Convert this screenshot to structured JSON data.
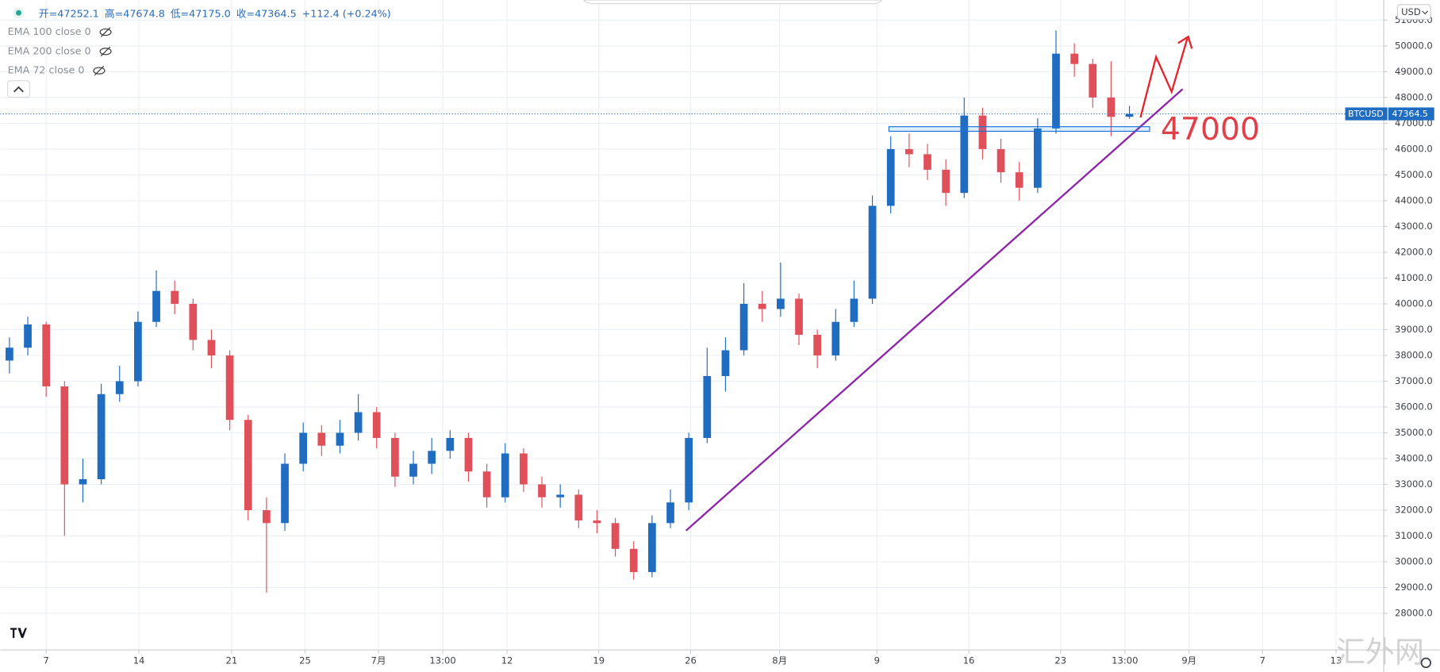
{
  "chart_data": {
    "type": "candlestick",
    "symbol": "BTCUSD",
    "currency": "USD",
    "header": [
      "开=47252.1",
      "高=47674.8",
      "低=47175.0",
      "收=47364.5",
      "+112.4 (+0.24%)"
    ],
    "indicators": [
      "EMA 100 close 0",
      "EMA 200 close 0",
      "EMA 72 close 0"
    ],
    "annotation": "47000",
    "watermark": "汇外网",
    "up_color": "#1f6cc0",
    "down_color": "#e0505a",
    "grid": true,
    "open": [
      37800,
      38300,
      39200,
      36800,
      33000,
      33200,
      36500,
      37000,
      39300,
      40500,
      40000,
      38600,
      38000,
      35500,
      32000,
      31500,
      33800,
      35000,
      34500,
      35000,
      35800,
      34800,
      33300,
      33800,
      34300,
      34800,
      33500,
      32500,
      34200,
      33000,
      32500,
      32600,
      31600,
      31500,
      30500,
      29600,
      31500,
      32300,
      34800,
      37200,
      38200,
      40000,
      39800,
      40200,
      38800,
      38000,
      39300,
      40200,
      43800,
      46000,
      45800,
      45200,
      44300,
      47300,
      46000,
      45100,
      44500,
      46800,
      49700,
      49300,
      48000,
      47252.1
    ],
    "high": [
      38700,
      39500,
      39300,
      37000,
      34000,
      36900,
      37600,
      39700,
      41300,
      40900,
      40200,
      39000,
      38200,
      35700,
      32500,
      34200,
      35400,
      35300,
      35500,
      36500,
      36000,
      35000,
      34300,
      34800,
      35100,
      35000,
      33800,
      34600,
      34400,
      33300,
      33000,
      32800,
      32000,
      31700,
      30800,
      31800,
      32800,
      35000,
      38300,
      38700,
      40800,
      40500,
      41600,
      40400,
      39000,
      39800,
      40900,
      44200,
      46500,
      46600,
      46200,
      45600,
      48000,
      47600,
      46400,
      45500,
      47200,
      50600,
      50100,
      49500,
      49400,
      47674.8
    ],
    "low": [
      37300,
      38000,
      36400,
      31000,
      32300,
      33000,
      36200,
      36800,
      39100,
      39600,
      38200,
      37500,
      35100,
      31600,
      28800,
      31200,
      33500,
      34100,
      34200,
      34700,
      34400,
      32900,
      33000,
      33400,
      34000,
      33100,
      32100,
      32300,
      32700,
      32100,
      32100,
      31300,
      31100,
      30200,
      29300,
      29400,
      31300,
      32000,
      34600,
      36600,
      38000,
      39300,
      39500,
      38400,
      37500,
      37800,
      39100,
      40000,
      43500,
      45300,
      44800,
      43800,
      44100,
      45600,
      44700,
      44000,
      44300,
      46600,
      48800,
      47600,
      46500,
      47175.0
    ],
    "close": [
      38300,
      39200,
      36800,
      33000,
      33200,
      36500,
      37000,
      39300,
      40500,
      40000,
      38600,
      38000,
      35500,
      32000,
      31500,
      33800,
      35000,
      34500,
      35000,
      35800,
      34800,
      33300,
      33800,
      34300,
      34800,
      33500,
      32500,
      34200,
      33000,
      32500,
      32600,
      31600,
      31500,
      30500,
      29600,
      31500,
      32300,
      34800,
      37200,
      38200,
      40000,
      39800,
      40200,
      38800,
      38000,
      39300,
      40200,
      43800,
      46000,
      45800,
      45200,
      44300,
      47300,
      46000,
      45100,
      44500,
      46800,
      49700,
      49300,
      48000,
      47250,
      47364.5
    ],
    "xlim": [
      -0.5,
      74.85
    ],
    "xticks": [
      {
        "value": 2,
        "label": "7"
      },
      {
        "value": 7.05,
        "label": "14"
      },
      {
        "value": 12.1,
        "label": "21"
      },
      {
        "value": 16.1,
        "label": "25"
      },
      {
        "value": 20.1,
        "label": "7月"
      },
      {
        "value": 23.6,
        "label": "13:00"
      },
      {
        "value": 27.1,
        "label": "12"
      },
      {
        "value": 32.1,
        "label": "19"
      },
      {
        "value": 37.1,
        "label": "26"
      },
      {
        "value": 41.95,
        "label": "8月"
      },
      {
        "value": 47.25,
        "label": "9"
      },
      {
        "value": 52.25,
        "label": "16"
      },
      {
        "value": 57.25,
        "label": "23"
      },
      {
        "value": 60.75,
        "label": "13:00"
      },
      {
        "value": 64.25,
        "label": "9月"
      },
      {
        "value": 68.25,
        "label": "7"
      },
      {
        "value": 72.25,
        "label": "13"
      }
    ],
    "ylim": [
      26580,
      51780
    ],
    "yticks": [
      {
        "value": 28000,
        "label": "28000.0"
      },
      {
        "value": 29000,
        "label": "29000.0"
      },
      {
        "value": 30000,
        "label": "30000.0"
      },
      {
        "value": 31000,
        "label": "31000.0"
      },
      {
        "value": 32000,
        "label": "32000.0"
      },
      {
        "value": 33000,
        "label": "33000.0"
      },
      {
        "value": 34000,
        "label": "34000.0"
      },
      {
        "value": 35000,
        "label": "35000.0"
      },
      {
        "value": 36000,
        "label": "36000.0"
      },
      {
        "value": 37000,
        "label": "37000.0"
      },
      {
        "value": 38000,
        "label": "38000.0"
      },
      {
        "value": 39000,
        "label": "39000.0"
      },
      {
        "value": 40000,
        "label": "40000.0"
      },
      {
        "value": 41000,
        "label": "41000.0"
      },
      {
        "value": 42000,
        "label": "42000.0"
      },
      {
        "value": 43000,
        "label": "43000.0"
      },
      {
        "value": 44000,
        "label": "44000.0"
      },
      {
        "value": 45000,
        "label": "45000.0"
      },
      {
        "value": 46000,
        "label": "46000.0"
      },
      {
        "value": 47000,
        "label": "47000.0"
      },
      {
        "value": 48000,
        "label": "48000.0"
      },
      {
        "value": 49000,
        "label": "49000.0"
      },
      {
        "value": 50000,
        "label": "50000.0"
      },
      {
        "value": 51000,
        "label": "51000.0"
      }
    ]
  }
}
